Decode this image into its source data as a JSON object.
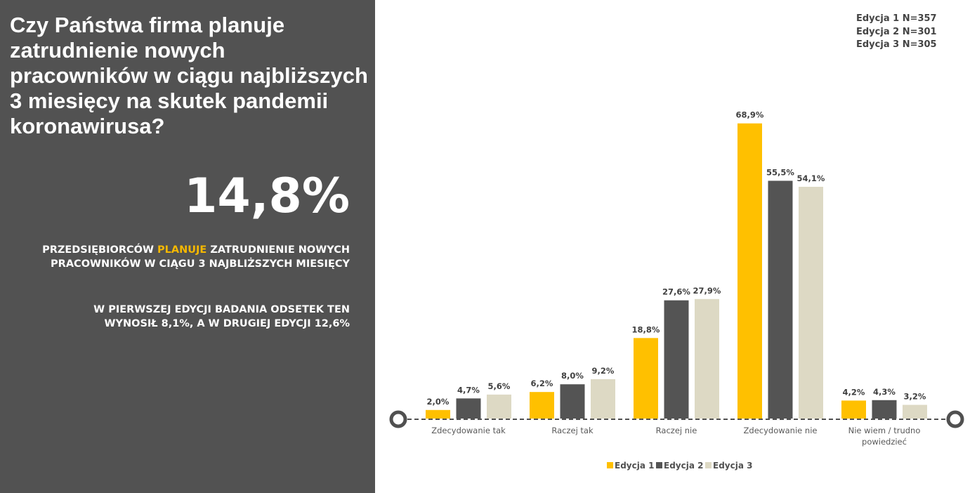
{
  "question": "Czy Państwa firma planuje zatrudnienie nowych pracowników w ciągu najbliższych 3 miesięcy na skutek pandemii koronawirusa?",
  "highlight_value": "14,8%",
  "statement1": {
    "before": "PRZEDSIĘBIORCÓW ",
    "highlight": "PLANUJE",
    "after": " ZATRUDNIENIE NOWYCH PRACOWNIKÓW W CIĄGU 3 NAJBLIŻSZYCH MIESIĘCY"
  },
  "statement2": "W PIERWSZEJ EDYCJI BADANIA ODSETEK TEN WYNOSIŁ 8,1%, A W DRUGIEJ EDYCJI 12,6%",
  "sample_notes": [
    "Edycja 1 N=357",
    "Edycja 2 N=301",
    "Edycja 3 N=305"
  ],
  "colors": {
    "panel": "#525252",
    "highlight": "#f5b800",
    "edycja1": "#ffc000",
    "edycja2": "#545454",
    "edycja3": "#ddd9c4"
  },
  "chart_data": {
    "type": "bar",
    "categories": [
      "Zdecydowanie tak",
      "Raczej tak",
      "Raczej nie",
      "Zdecydowanie nie",
      "Nie wiem / trudno powiedzieć"
    ],
    "series": [
      {
        "name": "Edycja 1",
        "color": "#ffc000",
        "values": [
          2.0,
          6.2,
          18.8,
          68.9,
          4.2
        ],
        "labels": [
          "2,0%",
          "6,2%",
          "18,8%",
          "68,9%",
          "4,2%"
        ]
      },
      {
        "name": "Edycja 2",
        "color": "#545454",
        "values": [
          4.7,
          8.0,
          27.6,
          55.5,
          4.3
        ],
        "labels": [
          "4,7%",
          "8,0%",
          "27,6%",
          "55,5%",
          "4,3%"
        ]
      },
      {
        "name": "Edycja 3",
        "color": "#ddd9c4",
        "values": [
          5.6,
          9.2,
          27.9,
          54.1,
          3.2
        ],
        "labels": [
          "5,6%",
          "9,2%",
          "27,9%",
          "54,1%",
          "3,2%"
        ]
      }
    ],
    "legend_position": "bottom",
    "grid": false
  }
}
